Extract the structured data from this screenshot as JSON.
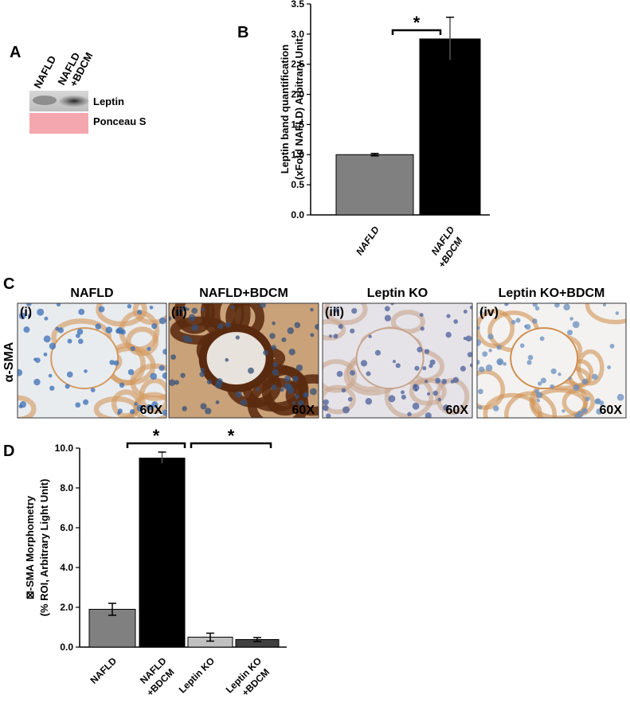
{
  "panel_labels": [
    "A",
    "B",
    "C",
    "D"
  ],
  "blot": {
    "lanes": [
      [
        "NAFLD"
      ],
      [
        "NAFLD",
        "+BDCM"
      ]
    ],
    "rows": [
      "Leptin",
      "Ponceau S"
    ]
  },
  "micrographs": {
    "row_label": "α-SMA",
    "titles": [
      "NAFLD",
      "NAFLD+BDCM",
      "Leptin KO",
      "Leptin KO+BDCM"
    ],
    "tags": [
      "(i)",
      "(ii)",
      "(iii)",
      "(iv)"
    ],
    "magnification": [
      "60X",
      "60X",
      "60X",
      "60X"
    ]
  },
  "chart_data": [
    {
      "type": "bar",
      "ylabel": [
        "Leptin band quantification",
        "(xFold NAFLD) Arbitrary Unit"
      ],
      "categories": [
        [
          "NAFLD"
        ],
        [
          "NAFLD",
          "+BDCM"
        ]
      ],
      "values": [
        1.0,
        2.92
      ],
      "errors": [
        0.02,
        0.36
      ],
      "colors": [
        "#808080",
        "#000000"
      ],
      "ylim": [
        0,
        3.5
      ],
      "yticks": [
        {
          "value": 0,
          "label": "0.0"
        },
        {
          "value": 0.5,
          "label": "0.5"
        },
        {
          "value": 1,
          "label": "1.0"
        },
        {
          "value": 1.5,
          "label": "1.5"
        },
        {
          "value": 2,
          "label": "2.0"
        },
        {
          "value": 2.5,
          "label": "2.5"
        },
        {
          "value": 3,
          "label": "3.0"
        },
        {
          "value": 3.5,
          "label": "3.5"
        }
      ],
      "annotations": [
        {
          "text": "*",
          "between": [
            0,
            1
          ]
        }
      ]
    },
    {
      "type": "bar",
      "ylabel": [
        "⊠-SMA Morphometry",
        "(% ROI, Arbitrary Light Unit)"
      ],
      "categories": [
        [
          "NAFLD"
        ],
        [
          "NAFLD",
          "+BDCM"
        ],
        [
          "Leptin KO"
        ],
        [
          "Leptin KO",
          "+BDCM"
        ]
      ],
      "values": [
        1.9,
        9.5,
        0.5,
        0.38
      ],
      "errors": [
        0.3,
        0.3,
        0.2,
        0.1
      ],
      "colors": [
        "#808080",
        "#000000",
        "#c0c0c0",
        "#404040"
      ],
      "ylim": [
        0,
        10
      ],
      "yticks": [
        {
          "value": 0,
          "label": "0.0"
        },
        {
          "value": 2,
          "label": "2.0"
        },
        {
          "value": 4,
          "label": "4.0"
        },
        {
          "value": 6,
          "label": "6.0"
        },
        {
          "value": 8,
          "label": "8.0"
        },
        {
          "value": 10,
          "label": "10.0"
        }
      ],
      "annotations": [
        {
          "text": "*",
          "between": [
            0,
            1
          ]
        },
        {
          "text": "*",
          "between": [
            1,
            3
          ]
        }
      ]
    }
  ]
}
